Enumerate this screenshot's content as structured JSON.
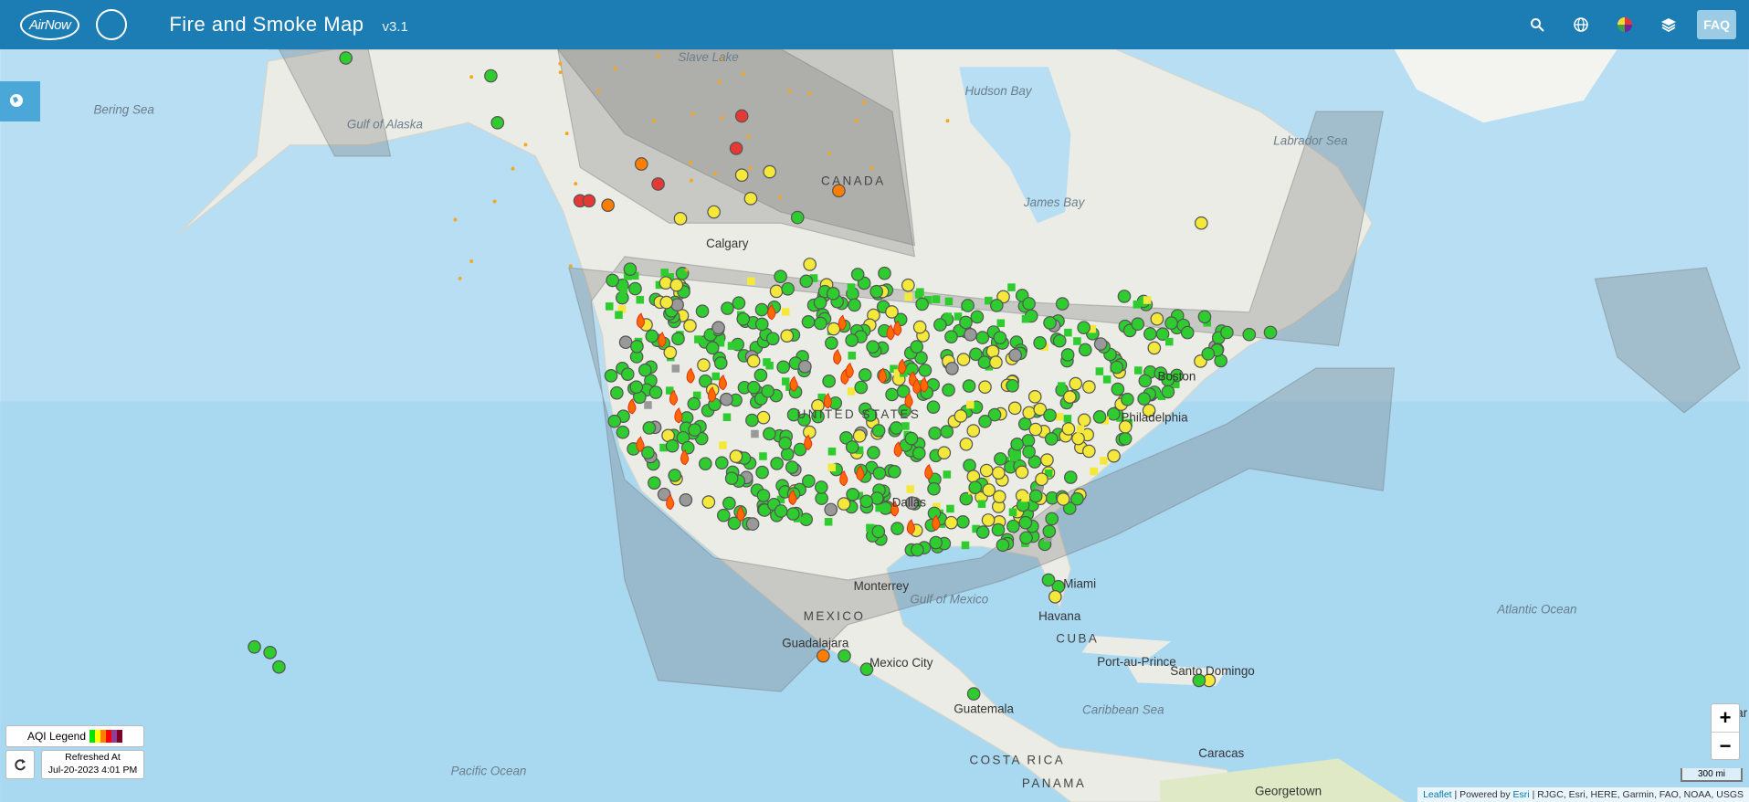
{
  "header": {
    "logo": "AirNow",
    "title": "Fire and Smoke Map",
    "version": "v3.1",
    "faq": "FAQ"
  },
  "map_labels": [
    "Bering Sea",
    "Gulf of Alaska",
    "Slave Lake",
    "Hudson Bay",
    "James Bay",
    "Labrador Sea",
    "CANADA",
    "Calgary",
    "UNITED STATES",
    "Boston",
    "Philadelphia",
    "Dallas",
    "Miami",
    "Havana",
    "CUBA",
    "Gulf of Mexico",
    "MEXICO",
    "Monterrey",
    "Guadalajara",
    "Mexico City",
    "Port-au-Prince",
    "Santo Domingo",
    "Atlantic Ocean",
    "Caribbean Sea",
    "Guatemala",
    "COSTA RICA",
    "PANAMA",
    "Caracas",
    "Georgetown",
    "Pacific Ocean",
    "Dakar"
  ],
  "legend": {
    "label": "AQI Legend",
    "refreshed_label": "Refreshed At",
    "refreshed_time": "Jul-20-2023 4:01 PM"
  },
  "zoom": {
    "in": "+",
    "out": "−"
  },
  "scale": "300 mi",
  "attribution": [
    "Leaflet",
    "| Powered by",
    "Esri",
    "| RJGC, Esri, HERE, Garmin, FAO, NOAA, USGS"
  ]
}
